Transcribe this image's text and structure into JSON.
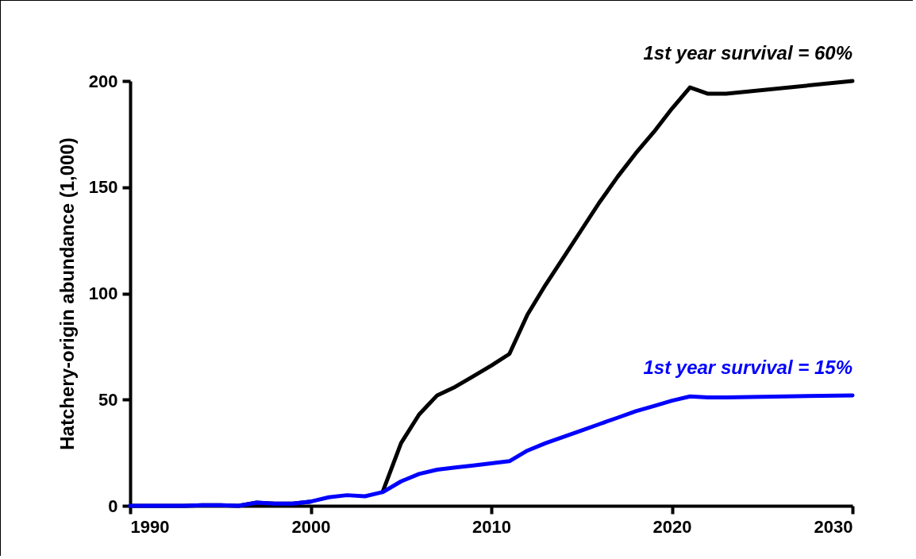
{
  "chart_data": {
    "type": "line",
    "ylabel": "Hatchery-origin abundance (1,000)",
    "x": [
      1990,
      1991,
      1992,
      1993,
      1994,
      1995,
      1996,
      1997,
      1998,
      1999,
      2000,
      2001,
      2002,
      2003,
      2004,
      2005,
      2006,
      2007,
      2008,
      2009,
      2010,
      2011,
      2012,
      2013,
      2014,
      2015,
      2016,
      2017,
      2018,
      2019,
      2020,
      2021,
      2022,
      2023,
      2030
    ],
    "series": [
      {
        "name": "1st year survival = 60%",
        "color": "#000000",
        "values": [
          0,
          0,
          0,
          0,
          0.3,
          0.3,
          0,
          1.5,
          1,
          1,
          2,
          null,
          null,
          null,
          7,
          29.5,
          43,
          52,
          56,
          61,
          66,
          71.5,
          90,
          104,
          117,
          130,
          143,
          155,
          166,
          176,
          187,
          197,
          194,
          194,
          200
        ]
      },
      {
        "name": "1st year survival = 15%",
        "color": "#0000ff",
        "values": [
          0,
          0,
          0,
          0,
          0.3,
          0.3,
          0,
          1.5,
          1,
          1,
          2,
          4,
          5,
          4.5,
          6.5,
          11.5,
          15,
          17,
          18,
          19,
          20,
          21,
          26,
          29.5,
          32.5,
          35.5,
          38.5,
          41.5,
          44.5,
          47,
          49.5,
          51.5,
          51,
          51,
          52
        ]
      }
    ],
    "xlim": [
      1990,
      2030
    ],
    "xticks": [
      1990,
      2000,
      2010,
      2020,
      2030
    ],
    "ylim": [
      0,
      200
    ],
    "yticks": [
      0,
      50,
      100,
      150,
      200
    ],
    "grid": false,
    "legend": false,
    "marker": "none",
    "line_style": "solid"
  }
}
